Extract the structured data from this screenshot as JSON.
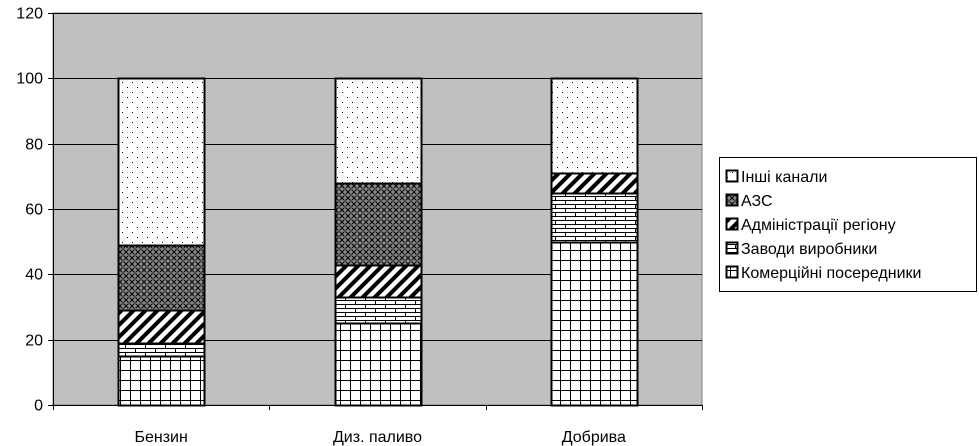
{
  "chart_data": {
    "type": "bar",
    "stacked": true,
    "categories": [
      "Бензин",
      "Диз. паливо",
      "Добрива"
    ],
    "series": [
      {
        "name": "Комерційні посередники",
        "values": [
          15,
          25,
          50
        ],
        "pattern": "grid-large"
      },
      {
        "name": "Заводи виробники",
        "values": [
          4,
          8,
          15
        ],
        "pattern": "brick"
      },
      {
        "name": "Адміністрації регіону",
        "values": [
          10,
          10,
          6
        ],
        "pattern": "diagonal-wide"
      },
      {
        "name": "АЗС",
        "values": [
          20,
          25,
          0
        ],
        "pattern": "crosshatch-dense"
      },
      {
        "name": "Інші канали",
        "values": [
          51,
          32,
          29
        ],
        "pattern": "dots-sparse"
      }
    ],
    "ylim": [
      0,
      120
    ],
    "yticks": [
      0,
      20,
      40,
      60,
      80,
      100,
      120
    ],
    "legend_position": "right",
    "plot_background": "#c0c0c0",
    "grid": true,
    "legend_order": [
      "Інші канали",
      "АЗС",
      "Адміністрації регіону",
      "Заводи виробники",
      "Комерційні посередники"
    ]
  }
}
